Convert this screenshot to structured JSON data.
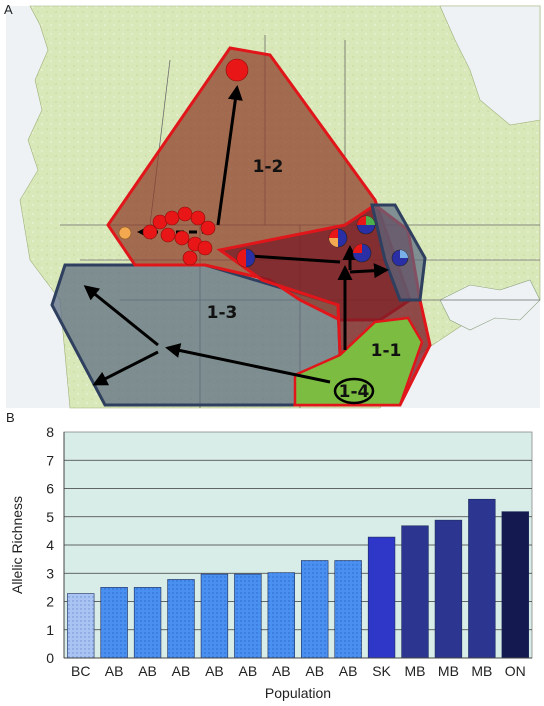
{
  "panel_a": {
    "label": "A",
    "regions": [
      {
        "id": "1-1",
        "label": "1-1"
      },
      {
        "id": "1-2",
        "label": "1-2"
      },
      {
        "id": "1-3",
        "label": "1-3"
      },
      {
        "id": "1-4",
        "label": "1-4"
      }
    ],
    "colors": {
      "land": "#d9e8b8",
      "water": "#eef2f4",
      "region_1_2": "#8c3a28",
      "region_1_3": "#5a6a80",
      "region_1_1": "#7a1e28",
      "region_1_4": "#7ac241",
      "region_border_red": "#e0161b",
      "region_border_navy": "#2f3f5f"
    },
    "markers": {
      "red_site": "#e81616",
      "orange_site": "#f4a950",
      "pie_colors": [
        "#e81616",
        "#2b2fa6",
        "#4cb04c",
        "#f4a950"
      ]
    }
  },
  "chart_data": {
    "type": "bar",
    "panel_label": "B",
    "categories": [
      "BC",
      "AB",
      "AB",
      "AB",
      "AB",
      "AB",
      "AB",
      "AB",
      "AB",
      "SK",
      "MB",
      "MB",
      "MB",
      "ON"
    ],
    "values": [
      2.28,
      2.5,
      2.5,
      2.78,
      2.97,
      2.97,
      3.02,
      3.45,
      3.45,
      4.28,
      4.68,
      4.88,
      5.62,
      5.18
    ],
    "colors": [
      "#a9c4f2",
      "#4a90f0",
      "#4a90f0",
      "#4a90f0",
      "#4a90f0",
      "#4a90f0",
      "#4a90f0",
      "#4a90f0",
      "#4a90f0",
      "#2e37c8",
      "#2c3590",
      "#2c3590",
      "#2c3590",
      "#14194f"
    ],
    "xlabel": "Population",
    "ylabel": "Allelic Richness",
    "ylim": [
      0,
      8
    ],
    "yticks": [
      0,
      1,
      2,
      3,
      4,
      5,
      6,
      7,
      8
    ],
    "grid": true,
    "plot_background": "#d8ece8"
  }
}
